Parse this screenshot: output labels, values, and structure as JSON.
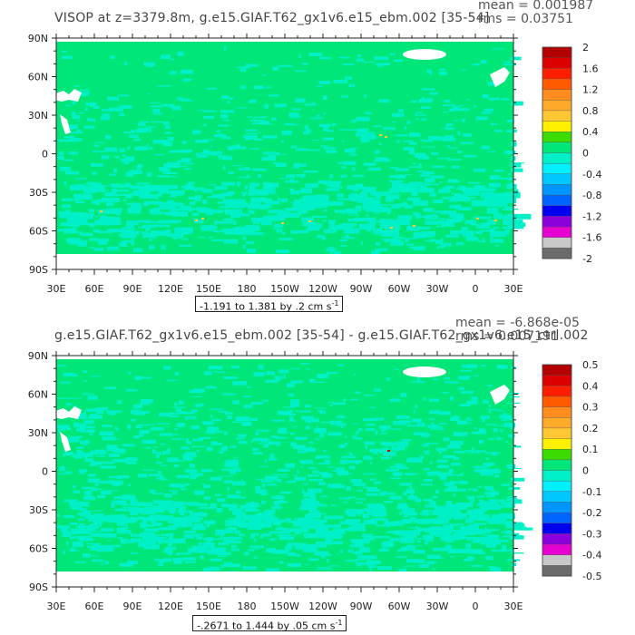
{
  "panels": [
    {
      "title": "VISOP at z=3379.8m, g.e15.GIAF.T62_gx1v6.e15_ebm.002 [35-54]",
      "mean": "mean = 0.001987",
      "rms": "rms = 0.03751",
      "range": "-1.191 to 1.381 by .2 cm s",
      "range_exp": "-1",
      "colorbar_labels": [
        "2",
        "1.6",
        "1.2",
        "0.8",
        "0.4",
        "0",
        "-0.4",
        "-0.8",
        "-1.2",
        "-1.6",
        "-2"
      ],
      "colorbar_colors": [
        "#6b6b6b",
        "#c8c8c8",
        "#e600d2",
        "#8c00dc",
        "#0000f0",
        "#0064ff",
        "#0096ff",
        "#00c8ff",
        "#00f0ff",
        "#00f0c8",
        "#00e678",
        "#3cdc00",
        "#fff000",
        "#ffc832",
        "#ffaa28",
        "#ff8c1e",
        "#ff5a00",
        "#ff1e00",
        "#dc0000",
        "#b40000"
      ]
    },
    {
      "title": "g.e15.GIAF.T62_gx1v6.e15_ebm.002 [35-54] - g.e15.GIAF.T62_gx1v6.e15_ctrl.002",
      "mean": "mean = -6.868e-05",
      "rms": "rms = 0.007191",
      "range": "-.2671 to 1.444 by .05 cm s",
      "range_exp": "-1",
      "colorbar_labels": [
        "0.5",
        "0.4",
        "0.3",
        "0.2",
        "0.1",
        "0",
        "-0.1",
        "-0.2",
        "-0.3",
        "-0.4",
        "-0.5"
      ],
      "colorbar_colors": [
        "#6b6b6b",
        "#c8c8c8",
        "#e600d2",
        "#8c00dc",
        "#0000f0",
        "#0064ff",
        "#0096ff",
        "#00c8ff",
        "#00f0ff",
        "#00f0c8",
        "#00e678",
        "#3cdc00",
        "#fff000",
        "#ffc832",
        "#ffaa28",
        "#ff8c1e",
        "#ff5a00",
        "#ff1e00",
        "#dc0000",
        "#b40000"
      ]
    }
  ],
  "lat_labels": [
    "90N",
    "60N",
    "30N",
    "0",
    "30S",
    "60S",
    "90S"
  ],
  "lon_labels": [
    "30E",
    "60E",
    "90E",
    "120E",
    "150E",
    "180",
    "150W",
    "120W",
    "90W",
    "60W",
    "30W",
    "0",
    "30E"
  ],
  "colors": {
    "ocean": "#00e678",
    "anomaly": "#00f0c8",
    "land": "#ffffff",
    "frame": "#222222"
  }
}
